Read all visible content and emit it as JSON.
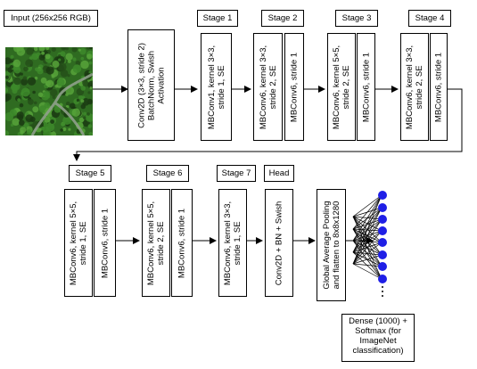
{
  "input_label": "Input (256x256 RGB)",
  "input_image": {
    "palette": [
      "#2f6b21",
      "#3d8a2a",
      "#244f19",
      "#1a3a12",
      "#57a33a",
      "#8fa08b",
      "#a7b0a2"
    ]
  },
  "stem_text": "Conv2D (3×3, stride 2)\nBatchNorm, Swish\nActivation",
  "stages": [
    {
      "label": "Stage 1",
      "blocks": [
        "MBConv1, kernel 3×3,\nstride 1, SE"
      ]
    },
    {
      "label": "Stage 2",
      "blocks": [
        "MBConv6, kernel 3×3,\nstride 2, SE",
        "MBConv6, stride 1"
      ]
    },
    {
      "label": "Stage 3",
      "blocks": [
        "MBConv6, kernel 5×5,\nstride 2, SE",
        "MBConv6, stride 1"
      ]
    },
    {
      "label": "Stage 4",
      "blocks": [
        "MBConv6, kernel 3×3,\nstride 2, SE",
        "MBConv6, stride 1"
      ]
    },
    {
      "label": "Stage 5",
      "blocks": [
        "MBConv6, kernel 5×5,\nstride 1, SE",
        "MBConv6, stride 1"
      ]
    },
    {
      "label": "Stage 6",
      "blocks": [
        "MBConv6, kernel 5×5,\nstride 2, SE",
        "MBConv6, stride 1"
      ]
    },
    {
      "label": "Stage 7",
      "blocks": [
        "MBConv6, kernel 3×3,\nstride 1, SE"
      ]
    }
  ],
  "head": {
    "label": "Head",
    "block": "Conv2D + BN + Swish"
  },
  "pool_text": "Global Average Pooling\nand flatten to 8x8x1280",
  "dense_text": "Dense (1000) +\nSoftmax (for\nImageNet\nclassification)",
  "node_color": "#1f1fe6"
}
